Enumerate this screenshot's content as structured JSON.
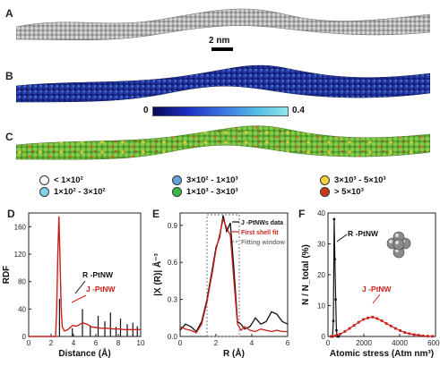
{
  "panels": {
    "a": "A",
    "b": "B",
    "c": "C",
    "d": "D",
    "e": "E",
    "f": "F"
  },
  "scale_bar": {
    "label": "2 nm"
  },
  "colorbar": {
    "min_label": "0",
    "max_label": "0.4"
  },
  "stress_legend": [
    {
      "label": "< 1×10²",
      "color": "#ffffff"
    },
    {
      "label": "1×10² - 3×10²",
      "color": "#7fd3e8"
    },
    {
      "label": "3×10² - 1×10³",
      "color": "#6aa2df"
    },
    {
      "label": "1×10³ - 3×10³",
      "color": "#3cb84a"
    },
    {
      "label": "3×10³ - 5×10³",
      "color": "#f4d23a"
    },
    {
      "label": "> 5×10³",
      "color": "#c83a1a"
    }
  ],
  "colors": {
    "red": "#cc1f1a",
    "black": "#111111",
    "grey_atoms": "#9a9a9a",
    "blue_atoms": "#1b2a8f",
    "green_atoms": "#7bc242"
  },
  "chart_data": [
    {
      "type": "line",
      "panel": "D",
      "xlabel": "Distance (Å)",
      "ylabel": "RDF",
      "xlim": [
        0,
        10
      ],
      "ylim": [
        0,
        180
      ],
      "xticks": [
        "0",
        "2",
        "4",
        "6",
        "8",
        "10"
      ],
      "yticks": [
        "0",
        "40",
        "80",
        "120",
        "160"
      ],
      "annotations": [
        "R -PtNW",
        "J -PtNW"
      ],
      "series": [
        {
          "name": "R -PtNW",
          "color": "#111111",
          "style": "sticks",
          "x": [
            2.75,
            3.9,
            4.8,
            5.5,
            6.2,
            6.8,
            7.3,
            7.8,
            8.2,
            8.8,
            9.3,
            9.7
          ],
          "y": [
            55,
            12,
            40,
            16,
            30,
            22,
            35,
            14,
            26,
            18,
            20,
            15
          ]
        },
        {
          "name": "J -PtNW",
          "color": "#cc1f1a",
          "style": "line",
          "x": [
            0,
            2.4,
            2.5,
            2.6,
            2.7,
            2.8,
            2.9,
            3.0,
            3.2,
            3.5,
            3.9,
            4.3,
            4.8,
            5.2,
            5.6,
            6.0,
            6.5,
            7.0,
            7.5,
            8.0,
            8.5,
            9.0,
            9.5,
            10
          ],
          "y": [
            0,
            0,
            40,
            120,
            175,
            110,
            40,
            14,
            8,
            10,
            16,
            15,
            20,
            18,
            14,
            13,
            12,
            12,
            11,
            11,
            10,
            10,
            10,
            10
          ]
        }
      ]
    },
    {
      "type": "line",
      "panel": "E",
      "xlabel": "R (Å)",
      "ylabel": "|X (R)| Å⁻³",
      "xlim": [
        0,
        6
      ],
      "ylim": [
        0,
        1.0
      ],
      "xticks": [
        "0",
        "2",
        "4",
        "6"
      ],
      "yticks": [
        "0.0",
        "0.3",
        "0.6",
        "0.9"
      ],
      "fitting_window": [
        1.5,
        3.3
      ],
      "legend": [
        "J -PtNWs data",
        "First shell fit",
        "Fitting window"
      ],
      "series": [
        {
          "name": "J -PtNWs data",
          "color": "#111111",
          "x": [
            0.0,
            0.3,
            0.6,
            0.9,
            1.2,
            1.5,
            1.8,
            2.0,
            2.2,
            2.4,
            2.6,
            2.8,
            3.0,
            3.2,
            3.4,
            3.6,
            3.9,
            4.2,
            4.5,
            4.8,
            5.1,
            5.4,
            5.7,
            6.0
          ],
          "y": [
            0.05,
            0.1,
            0.08,
            0.04,
            0.12,
            0.3,
            0.55,
            0.72,
            0.8,
            0.98,
            0.85,
            0.92,
            0.55,
            0.12,
            0.1,
            0.06,
            0.08,
            0.15,
            0.1,
            0.12,
            0.2,
            0.18,
            0.12,
            0.1
          ]
        },
        {
          "name": "First shell fit",
          "color": "#cc1f1a",
          "x": [
            0.0,
            0.3,
            0.6,
            0.9,
            1.2,
            1.5,
            1.8,
            2.0,
            2.2,
            2.4,
            2.6,
            2.8,
            3.0,
            3.2,
            3.4,
            3.6,
            3.9,
            4.2,
            4.5,
            4.8,
            5.1,
            5.4,
            5.7,
            6.0
          ],
          "y": [
            0.08,
            0.06,
            0.05,
            0.03,
            0.1,
            0.28,
            0.52,
            0.7,
            0.82,
            0.95,
            0.88,
            0.82,
            0.45,
            0.1,
            0.05,
            0.08,
            0.05,
            0.04,
            0.06,
            0.05,
            0.04,
            0.05,
            0.04,
            0.04
          ]
        }
      ]
    },
    {
      "type": "line",
      "panel": "F",
      "xlabel": "Atomic stress (Atm nm³)",
      "ylabel": "N / N_total (%)",
      "xlim": [
        0,
        7000
      ],
      "ylim": [
        0,
        40
      ],
      "xticks": [
        "0",
        "2000",
        "4000",
        "6000"
      ],
      "yticks": [
        "0",
        "10",
        "20",
        "30",
        "40"
      ],
      "annotations": [
        "R -PtNW",
        "J -PtNW"
      ],
      "series": [
        {
          "name": "R -PtNW",
          "color": "#111111",
          "x": [
            200,
            300,
            350,
            400,
            450,
            500,
            550,
            600,
            700
          ],
          "y": [
            0,
            0,
            5,
            38,
            25,
            12,
            2,
            0,
            0
          ]
        },
        {
          "name": "J -PtNW",
          "color": "#cc1f1a",
          "x": [
            200,
            500,
            800,
            1100,
            1400,
            1700,
            2000,
            2300,
            2600,
            2900,
            3200,
            3500,
            3800,
            4100,
            4400,
            4700,
            5000,
            5300,
            5600,
            5900,
            6200,
            6500,
            6800
          ],
          "y": [
            0,
            0.3,
            0.8,
            1.6,
            2.6,
            3.6,
            4.6,
            5.5,
            6.0,
            6.3,
            5.8,
            5.1,
            4.2,
            3.4,
            2.6,
            1.9,
            1.3,
            0.9,
            0.6,
            0.4,
            0.2,
            0.1,
            0.05
          ]
        }
      ]
    }
  ]
}
